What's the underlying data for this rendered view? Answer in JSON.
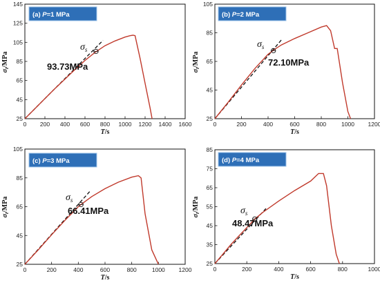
{
  "chart_data": [
    {
      "type": "line",
      "panel_label": "(a) ",
      "panel_value": "P=1 MPa",
      "xlabel": "T/s",
      "ylabel": "σt/MPa",
      "xlim": [
        0,
        1600
      ],
      "ylim": [
        25,
        145
      ],
      "xticks": [
        0,
        200,
        400,
        600,
        800,
        1000,
        1200,
        1400,
        1600
      ],
      "yticks": [
        25,
        45,
        65,
        85,
        105,
        125,
        145
      ],
      "series": [
        {
          "x": [
            0,
            100,
            200,
            300,
            400,
            500,
            600,
            700,
            800,
            900,
            1000,
            1050,
            1080,
            1100,
            1150,
            1200,
            1250,
            1270
          ],
          "y": [
            25,
            35.5,
            46,
            56.5,
            66.5,
            76.5,
            86,
            94.5,
            101.5,
            106.5,
            110.5,
            112,
            112.5,
            112,
            88,
            62,
            36,
            25
          ]
        }
      ],
      "linear_fit": {
        "x": [
          0,
          780
        ],
        "y": [
          25,
          107
        ]
      },
      "yield_point": {
        "x": 710,
        "y": 95.5
      },
      "annotation": "93.73MPa",
      "sigma_label": "σs"
    },
    {
      "type": "line",
      "panel_label": "(b) ",
      "panel_value": "P=2 MPa",
      "xlabel": "T/s",
      "ylabel": "σt/MPa",
      "xlim": [
        0,
        1200
      ],
      "ylim": [
        25,
        105
      ],
      "xticks": [
        0,
        200,
        400,
        600,
        800,
        1000,
        1200
      ],
      "yticks": [
        25,
        45,
        65,
        85,
        105
      ],
      "series": [
        {
          "x": [
            0,
            100,
            200,
            300,
            400,
            450,
            500,
            600,
            700,
            800,
            840,
            870,
            900,
            920,
            960,
            1000,
            1020
          ],
          "y": [
            25,
            36.5,
            48.5,
            60,
            70,
            73.5,
            76.5,
            81,
            85,
            89,
            90,
            86.5,
            74,
            74,
            50,
            30,
            25
          ]
        }
      ],
      "linear_fit": {
        "x": [
          0,
          500
        ],
        "y": [
          25,
          80
        ]
      },
      "yield_point": {
        "x": 440,
        "y": 72.5
      },
      "annotation": "72.10MPa",
      "sigma_label": "σs"
    },
    {
      "type": "line",
      "panel_label": "(c) ",
      "panel_value": "P=3 MPa",
      "xlabel": "T/s",
      "ylabel": "σt/MPa",
      "xlim": [
        0,
        1200
      ],
      "ylim": [
        25,
        105
      ],
      "xticks": [
        0,
        200,
        400,
        600,
        800,
        1000,
        1200
      ],
      "yticks": [
        25,
        45,
        65,
        85,
        105
      ],
      "series": [
        {
          "x": [
            0,
            100,
            200,
            300,
            400,
            420,
            500,
            600,
            700,
            800,
            850,
            870,
            900,
            950,
            1000
          ],
          "y": [
            25,
            35,
            45.5,
            55.5,
            65,
            66.5,
            72,
            77.5,
            82,
            85.5,
            86.5,
            85,
            60,
            35,
            25
          ]
        }
      ],
      "linear_fit": {
        "x": [
          0,
          490
        ],
        "y": [
          25,
          76
        ]
      },
      "yield_point": {
        "x": 420,
        "y": 66.5
      },
      "annotation": "66.41MPa",
      "sigma_label": "σs"
    },
    {
      "type": "line",
      "panel_label": "(d) ",
      "panel_value": "P=4 MPa",
      "xlabel": "T/s",
      "ylabel": "σt/MPa",
      "xlim": [
        0,
        1000
      ],
      "ylim": [
        25,
        85
      ],
      "xticks": [
        0,
        200,
        400,
        600,
        800,
        1000
      ],
      "yticks": [
        25,
        35,
        45,
        55,
        65,
        75,
        85
      ],
      "series": [
        {
          "x": [
            0,
            50,
            100,
            150,
            200,
            250,
            300,
            400,
            500,
            600,
            650,
            680,
            700,
            730,
            760,
            780
          ],
          "y": [
            25,
            30,
            35,
            39.5,
            44,
            48.5,
            52,
            58,
            63.5,
            68.5,
            72.5,
            72.5,
            66,
            45,
            30,
            25
          ]
        }
      ],
      "linear_fit": {
        "x": [
          0,
          320
        ],
        "y": [
          25,
          54
        ]
      },
      "yield_point": {
        "x": 250,
        "y": 48.5
      },
      "annotation": "48.47MPa",
      "sigma_label": "σs"
    }
  ]
}
